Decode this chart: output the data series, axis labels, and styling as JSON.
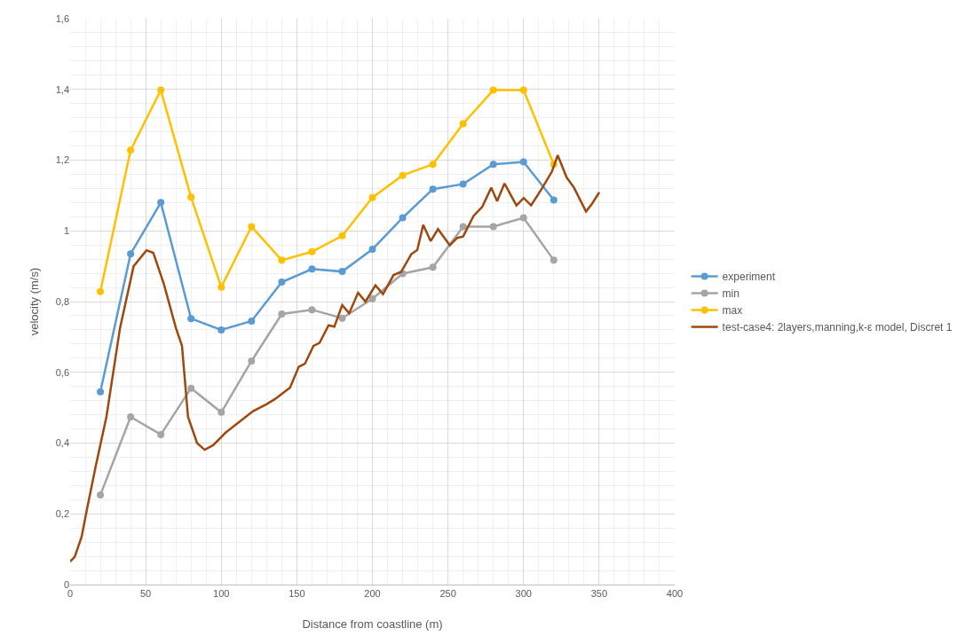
{
  "chart_data": {
    "type": "line",
    "xlabel": "Distance from coastline (m)",
    "ylabel": "velocity (m/s)",
    "xlim": [
      0,
      400
    ],
    "xticks": [
      0,
      50,
      100,
      150,
      200,
      250,
      300,
      350,
      400
    ],
    "ylim": [
      0,
      1.6
    ],
    "yticks": [
      {
        "value": 0,
        "label": "0"
      },
      {
        "value": 0.2,
        "label": "0,2"
      },
      {
        "value": 0.4,
        "label": "0,4"
      },
      {
        "value": 0.6,
        "label": "0,6"
      },
      {
        "value": 0.8,
        "label": "0,8"
      },
      {
        "value": 1,
        "label": "1"
      },
      {
        "value": 1.2,
        "label": "1,2"
      },
      {
        "value": 1.4,
        "label": "1,4"
      },
      {
        "value": 1.6,
        "label": "1,6"
      }
    ],
    "grid": true,
    "legend": "right",
    "line_style": "solid",
    "series": [
      {
        "name": "experiment",
        "color": "#5b9bd5",
        "marker": "circle",
        "x": [
          20,
          40,
          60,
          80,
          100,
          120,
          140,
          160,
          180,
          200,
          220,
          240,
          260,
          280,
          300,
          320
        ],
        "values": [
          0.545,
          0.935,
          1.08,
          0.752,
          0.72,
          0.745,
          0.855,
          0.892,
          0.885,
          0.948,
          1.037,
          1.118,
          1.132,
          1.188,
          1.195,
          1.087
        ]
      },
      {
        "name": "min",
        "color": "#a5a5a5",
        "marker": "circle",
        "x": [
          20,
          40,
          60,
          80,
          100,
          120,
          140,
          160,
          180,
          200,
          220,
          240,
          260,
          280,
          300,
          320
        ],
        "values": [
          0.253,
          0.474,
          0.424,
          0.555,
          0.487,
          0.632,
          0.765,
          0.777,
          0.753,
          0.808,
          0.879,
          0.897,
          1.012,
          1.012,
          1.037,
          0.917
        ]
      },
      {
        "name": "max",
        "color": "#ffc000",
        "marker": "circle",
        "x": [
          20,
          40,
          60,
          80,
          100,
          120,
          140,
          160,
          180,
          200,
          220,
          240,
          260,
          280,
          300,
          320
        ],
        "values": [
          0.828,
          1.228,
          1.398,
          1.095,
          0.841,
          1.012,
          0.917,
          0.941,
          0.986,
          1.094,
          1.157,
          1.188,
          1.303,
          1.398,
          1.398,
          1.188
        ]
      },
      {
        "name": "test-case4: 2layers,manning,k-ε model, Discret 1",
        "color": "#9e480e",
        "marker": "none",
        "x": [
          0,
          3,
          7.6,
          11,
          17,
          24,
          33,
          42,
          50.5,
          55,
          62,
          70,
          74,
          78,
          84,
          89,
          94.6,
          103,
          112,
          121,
          130,
          135.7,
          145.5,
          151.3,
          155.3,
          161,
          165,
          171,
          174.8,
          180,
          184.6,
          190.5,
          195.4,
          202,
          207,
          214,
          219,
          225.7,
          229.7,
          233.6,
          238.5,
          243.4,
          251.2,
          256.1,
          260,
          266.9,
          272.7,
          278.6,
          282.5,
          287.4,
          295.3,
          300.1,
          305,
          311.9,
          318.8,
          322.6,
          328.5,
          333.4,
          341.3,
          345.2,
          350.1
        ],
        "values": [
          0.065,
          0.078,
          0.135,
          0.21,
          0.336,
          0.474,
          0.725,
          0.9,
          0.945,
          0.938,
          0.85,
          0.725,
          0.675,
          0.474,
          0.4,
          0.381,
          0.394,
          0.43,
          0.46,
          0.49,
          0.51,
          0.525,
          0.557,
          0.616,
          0.624,
          0.675,
          0.683,
          0.733,
          0.729,
          0.79,
          0.767,
          0.825,
          0.8,
          0.846,
          0.821,
          0.875,
          0.884,
          0.934,
          0.946,
          1.017,
          0.971,
          1.005,
          0.959,
          0.98,
          0.984,
          1.042,
          1.068,
          1.122,
          1.084,
          1.134,
          1.072,
          1.093,
          1.072,
          1.118,
          1.168,
          1.214,
          1.151,
          1.122,
          1.055,
          1.076,
          1.109
        ]
      }
    ]
  }
}
